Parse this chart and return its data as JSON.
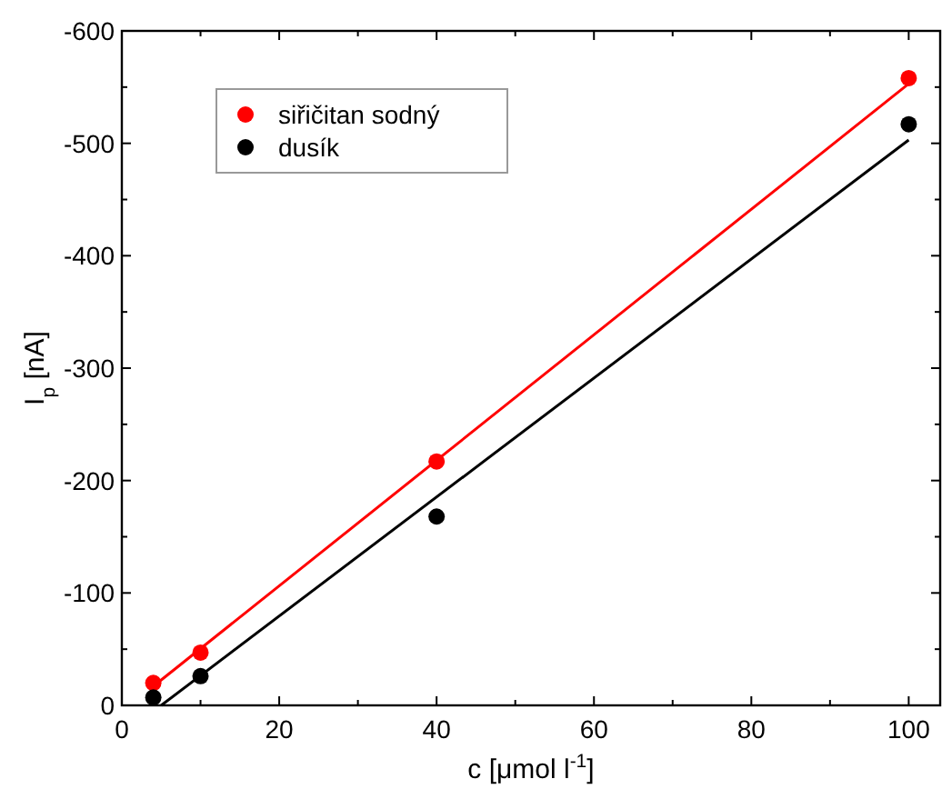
{
  "chart_data": {
    "type": "scatter",
    "xlabel": "c [μmol l$^{-1}$]",
    "ylabel": "I$_{p}$ [nA]",
    "xlim": [
      0,
      104
    ],
    "ylim": [
      0,
      -600
    ],
    "xticks": [
      0,
      20,
      40,
      60,
      80,
      100
    ],
    "yticks": [
      0,
      -100,
      -200,
      -300,
      -400,
      -500,
      -600
    ],
    "grid": false,
    "legend": "top left",
    "marker": "circle",
    "series": [
      {
        "name": "siřičitan sodný",
        "color": "#ff0000",
        "x": [
          4,
          10,
          40,
          100
        ],
        "values": [
          -20,
          -47,
          -217,
          -558
        ]
      },
      {
        "name": "dusík",
        "color": "#000000",
        "x": [
          4,
          10,
          40,
          100
        ],
        "values": [
          -7,
          -26,
          -168,
          -517
        ]
      },
      {
        "type": "line",
        "marker": "none",
        "color": "#ff0000",
        "x": [
          4,
          100
        ],
        "values": [
          -17,
          -553
        ]
      },
      {
        "type": "line",
        "marker": "none",
        "color": "#000000",
        "x": [
          5,
          100
        ],
        "values": [
          0,
          -503
        ]
      }
    ]
  }
}
